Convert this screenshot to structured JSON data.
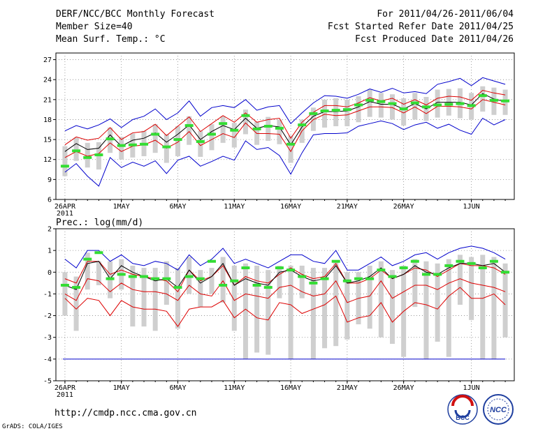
{
  "header": {
    "title": "DERF/NCC/BCC Monthly Forecast",
    "member_size": "Member Size=40",
    "variable": "Mean Surf. Temp.: °C",
    "period": "For 2011/04/26-2011/06/04",
    "started": "Fcst Started Refer Date 2011/04/25",
    "produced": "Fcst Produced Date 2011/04/26"
  },
  "footer": {
    "url": "http://cmdp.ncc.cma.gov.cn",
    "grads": "GrADS: COLA/IGES",
    "logo_bcc": "BCC",
    "logo_ncc": "NCC"
  },
  "colors": {
    "box": "#cfcfcf",
    "observed": "#33dd33",
    "mean": "#000000",
    "red": "#dd0000",
    "blue": "#0000cc"
  },
  "chart_data": [
    {
      "type": "line",
      "title": "Mean Surf. Temp.: °C",
      "days": 40,
      "ylim": [
        6,
        28
      ],
      "y_ticks": [
        6,
        9,
        12,
        15,
        18,
        21,
        24,
        27
      ],
      "x_ticks": [
        {
          "day": 0,
          "label": "26APR",
          "sub": "2011"
        },
        {
          "day": 5,
          "label": "1MAY"
        },
        {
          "day": 10,
          "label": "6MAY"
        },
        {
          "day": 15,
          "label": "11MAY"
        },
        {
          "day": 20,
          "label": "16MAY"
        },
        {
          "day": 25,
          "label": "21MAY"
        },
        {
          "day": 30,
          "label": "26MAY"
        },
        {
          "day": 36,
          "label": "1JUN"
        }
      ],
      "series": [
        {
          "name": "ensemble max",
          "color": "blue",
          "values": [
            16.3,
            17.1,
            16.6,
            17.2,
            18.1,
            16.8,
            18.0,
            18.5,
            19.6,
            18.0,
            19.0,
            20.8,
            18.5,
            19.8,
            20.1,
            19.8,
            21.0,
            19.4,
            19.9,
            20.1,
            17.4,
            19.0,
            20.5,
            21.6,
            21.5,
            21.2,
            21.8,
            22.6,
            22.1,
            22.7,
            22.0,
            22.2,
            21.9,
            23.3,
            23.7,
            24.2,
            23.1,
            24.3,
            23.8,
            23.3
          ]
        },
        {
          "name": "upper red",
          "color": "red",
          "values": [
            14.2,
            15.4,
            14.9,
            15.2,
            16.8,
            15.0,
            16.0,
            16.2,
            17.3,
            15.6,
            17.0,
            18.4,
            16.2,
            17.4,
            18.6,
            17.6,
            19.0,
            17.6,
            18.0,
            18.2,
            15.2,
            17.6,
            19.1,
            20.1,
            20.1,
            19.9,
            20.5,
            21.3,
            20.8,
            21.2,
            20.3,
            21.0,
            20.2,
            21.2,
            21.5,
            21.4,
            20.9,
            22.4,
            22.0,
            21.7
          ]
        },
        {
          "name": "ensemble mean",
          "color": "black",
          "values": [
            13.2,
            14.4,
            13.5,
            13.7,
            15.7,
            14.0,
            14.9,
            15.2,
            16.0,
            14.6,
            15.8,
            17.2,
            15.0,
            16.2,
            17.1,
            16.5,
            18.2,
            16.7,
            17.1,
            16.9,
            14.2,
            16.9,
            18.5,
            19.2,
            19.2,
            19.3,
            19.9,
            20.7,
            20.3,
            20.3,
            19.6,
            20.4,
            19.6,
            20.6,
            20.6,
            20.6,
            20.2,
            21.9,
            21.1,
            20.7
          ]
        },
        {
          "name": "lower red",
          "color": "red",
          "values": [
            12.3,
            13.2,
            12.5,
            12.9,
            14.5,
            13.2,
            14.0,
            14.2,
            14.9,
            13.7,
            14.6,
            16.2,
            14.1,
            15.0,
            15.9,
            15.3,
            17.5,
            15.9,
            15.9,
            15.8,
            13.2,
            16.3,
            18.0,
            18.8,
            18.6,
            18.7,
            19.3,
            19.9,
            19.9,
            19.8,
            19.0,
            19.9,
            18.9,
            20.0,
            20.0,
            19.9,
            19.6,
            21.0,
            20.6,
            20.2
          ]
        },
        {
          "name": "ensemble min",
          "color": "blue",
          "values": [
            10.1,
            11.4,
            9.5,
            8.0,
            12.3,
            10.8,
            11.6,
            11.0,
            11.8,
            9.9,
            11.9,
            12.5,
            11.0,
            11.7,
            12.5,
            11.9,
            14.8,
            13.5,
            13.8,
            12.6,
            9.8,
            13.0,
            15.7,
            15.9,
            15.9,
            16.0,
            17.0,
            17.4,
            17.8,
            17.4,
            16.5,
            17.2,
            17.6,
            16.7,
            17.3,
            16.4,
            15.8,
            18.2,
            17.2,
            18.0
          ]
        },
        {
          "name": "observed",
          "color": "green",
          "values": [
            11.0,
            13.3,
            12.3,
            12.7,
            15.1,
            14.1,
            14.2,
            14.3,
            15.8,
            13.9,
            15.0,
            17.1,
            14.7,
            15.8,
            17.4,
            16.4,
            18.6,
            16.6,
            17.0,
            16.7,
            14.3,
            17.2,
            18.9,
            19.3,
            19.4,
            19.5,
            20.2,
            20.9,
            20.7,
            20.4,
            19.6,
            20.5,
            19.9,
            20.2,
            20.3,
            20.4,
            20.1,
            21.6,
            20.9,
            20.8
          ]
        }
      ],
      "boxes": {
        "low": [
          9.5,
          11.8,
          10.8,
          10.5,
          13.0,
          12.0,
          12.3,
          12.5,
          13.0,
          11.5,
          12.5,
          14.2,
          12.4,
          13.4,
          14.5,
          13.8,
          15.8,
          14.2,
          14.8,
          14.3,
          11.5,
          14.5,
          16.3,
          16.8,
          17.0,
          17.0,
          17.6,
          18.4,
          18.3,
          18.0,
          17.1,
          18.0,
          17.8,
          18.3,
          18.6,
          18.2,
          18.0,
          19.2,
          18.7,
          18.7
        ],
        "high": [
          14.0,
          15.3,
          14.5,
          14.6,
          16.8,
          15.4,
          15.9,
          16.3,
          17.3,
          15.8,
          17.0,
          18.5,
          16.3,
          17.3,
          18.5,
          17.5,
          19.5,
          17.7,
          18.4,
          18.0,
          15.6,
          18.0,
          19.8,
          21.0,
          21.2,
          21.0,
          21.5,
          22.5,
          22.0,
          21.8,
          21.2,
          22.0,
          21.4,
          22.5,
          22.6,
          22.7,
          22.0,
          23.0,
          22.8,
          22.5
        ]
      }
    },
    {
      "type": "line",
      "title": "Prec.: log(mm/d)",
      "days": 40,
      "ylim": [
        -5,
        2
      ],
      "y_ticks": [
        -5,
        -4,
        -3,
        -2,
        -1,
        0,
        1,
        2
      ],
      "x_ticks": [
        {
          "day": 0,
          "label": "26APR",
          "sub": "2011"
        },
        {
          "day": 5,
          "label": "1MAY"
        },
        {
          "day": 10,
          "label": "6MAY"
        },
        {
          "day": 15,
          "label": "11MAY"
        },
        {
          "day": 20,
          "label": "16MAY"
        },
        {
          "day": 25,
          "label": "21MAY"
        },
        {
          "day": 30,
          "label": "26MAY"
        },
        {
          "day": 36,
          "label": "1JUN"
        }
      ],
      "baseline": -4,
      "series": [
        {
          "name": "ensemble max",
          "color": "blue",
          "values": [
            0.6,
            0.2,
            1.0,
            1.0,
            0.5,
            0.8,
            0.4,
            0.3,
            0.5,
            0.4,
            0.1,
            0.8,
            0.3,
            0.6,
            1.1,
            0.4,
            0.6,
            0.4,
            0.2,
            0.5,
            0.8,
            0.8,
            0.5,
            0.4,
            1.0,
            0.1,
            0.1,
            0.4,
            0.7,
            0.3,
            0.5,
            0.8,
            0.9,
            0.6,
            0.9,
            1.1,
            1.2,
            1.1,
            0.9,
            0.6
          ]
        },
        {
          "name": "upper red",
          "color": "red",
          "values": [
            -0.3,
            -0.5,
            0.5,
            0.5,
            -0.1,
            0.1,
            -0.1,
            -0.2,
            -0.3,
            -0.4,
            -0.9,
            0.1,
            -0.4,
            -0.2,
            0.3,
            -0.6,
            -0.2,
            -0.4,
            -0.5,
            -0.1,
            0.2,
            -0.1,
            -0.3,
            -0.2,
            0.4,
            -0.5,
            -0.5,
            -0.3,
            0.1,
            -0.3,
            -0.1,
            0.2,
            0.1,
            -0.2,
            0.1,
            0.4,
            0.3,
            0.3,
            0.2,
            -0.1
          ]
        },
        {
          "name": "ensemble mean",
          "color": "black",
          "values": [
            -0.6,
            -0.8,
            0.4,
            0.5,
            -0.3,
            0.3,
            0.0,
            -0.2,
            -0.4,
            -0.3,
            -0.7,
            0.1,
            -0.5,
            -0.2,
            0.4,
            -0.6,
            -0.3,
            -0.5,
            -0.6,
            0.0,
            0.1,
            -0.2,
            -0.4,
            -0.3,
            0.3,
            -0.5,
            -0.4,
            -0.2,
            0.2,
            -0.3,
            -0.1,
            0.3,
            0.0,
            -0.1,
            0.2,
            0.4,
            0.4,
            0.3,
            0.4,
            0.0
          ]
        },
        {
          "name": "lower red",
          "color": "red",
          "values": [
            -1.0,
            -1.3,
            -0.3,
            -0.4,
            -0.9,
            -0.5,
            -0.8,
            -0.9,
            -0.9,
            -1.0,
            -1.3,
            -0.6,
            -1.0,
            -1.1,
            -0.4,
            -1.3,
            -1.0,
            -1.1,
            -1.2,
            -0.7,
            -0.6,
            -0.9,
            -1.1,
            -1.0,
            -0.4,
            -1.4,
            -1.2,
            -1.1,
            -0.4,
            -1.2,
            -0.9,
            -0.6,
            -0.6,
            -0.8,
            -0.5,
            -0.3,
            -0.5,
            -0.6,
            -0.7,
            -0.9
          ]
        },
        {
          "name": "ensemble min",
          "color": "red",
          "values": [
            -1.2,
            -1.7,
            -1.2,
            -1.3,
            -2.0,
            -1.3,
            -1.6,
            -1.7,
            -1.7,
            -1.8,
            -2.5,
            -1.7,
            -1.6,
            -1.6,
            -1.3,
            -2.1,
            -1.7,
            -2.1,
            -2.2,
            -1.4,
            -1.5,
            -1.9,
            -1.7,
            -1.5,
            -1.1,
            -2.3,
            -2.1,
            -2.0,
            -1.4,
            -2.3,
            -1.8,
            -1.4,
            -1.5,
            -1.7,
            -1.1,
            -0.7,
            -1.2,
            -1.2,
            -1.0,
            -1.5
          ]
        },
        {
          "name": "observed",
          "color": "green",
          "values": [
            -0.6,
            -0.7,
            0.6,
            0.9,
            -0.3,
            -0.1,
            -0.2,
            -0.2,
            -0.3,
            -0.3,
            -0.7,
            -0.2,
            -0.3,
            0.5,
            -0.6,
            -0.4,
            0.2,
            -0.6,
            -0.7,
            0.2,
            0.1,
            -0.2,
            -0.5,
            -0.3,
            0.5,
            -0.4,
            -0.3,
            -0.3,
            0.1,
            -0.2,
            0.2,
            0.5,
            -0.1,
            -0.1,
            0.3,
            0.5,
            0.4,
            0.2,
            0.5,
            0.0
          ]
        }
      ],
      "boxes": {
        "low": [
          -2.0,
          -2.7,
          -0.8,
          -0.6,
          -1.2,
          -0.8,
          -2.5,
          -2.5,
          -2.7,
          -1.5,
          -2.6,
          -1.0,
          -1.6,
          -1.0,
          -1.4,
          -2.7,
          -4.0,
          -3.7,
          -3.8,
          -1.2,
          -4.0,
          -1.2,
          -4.0,
          -3.5,
          -3.4,
          -3.1,
          -2.4,
          -2.6,
          -3.0,
          -3.3,
          -3.9,
          -1.6,
          -4.0,
          -3.2,
          -3.9,
          -1.5,
          -2.2,
          -4.0,
          -4.0,
          -3.0
        ],
        "high": [
          0.0,
          -0.2,
          0.9,
          0.5,
          0.5,
          0.6,
          0.3,
          0.2,
          0.2,
          0.5,
          0.2,
          0.7,
          0.1,
          0.2,
          0.7,
          0.3,
          0.4,
          0.3,
          0.1,
          0.3,
          0.3,
          0.3,
          0.2,
          0.2,
          0.5,
          0.0,
          0.0,
          0.3,
          0.5,
          0.1,
          0.3,
          0.6,
          0.5,
          0.4,
          0.6,
          0.8,
          0.7,
          0.8,
          0.7,
          0.4
        ]
      }
    }
  ]
}
